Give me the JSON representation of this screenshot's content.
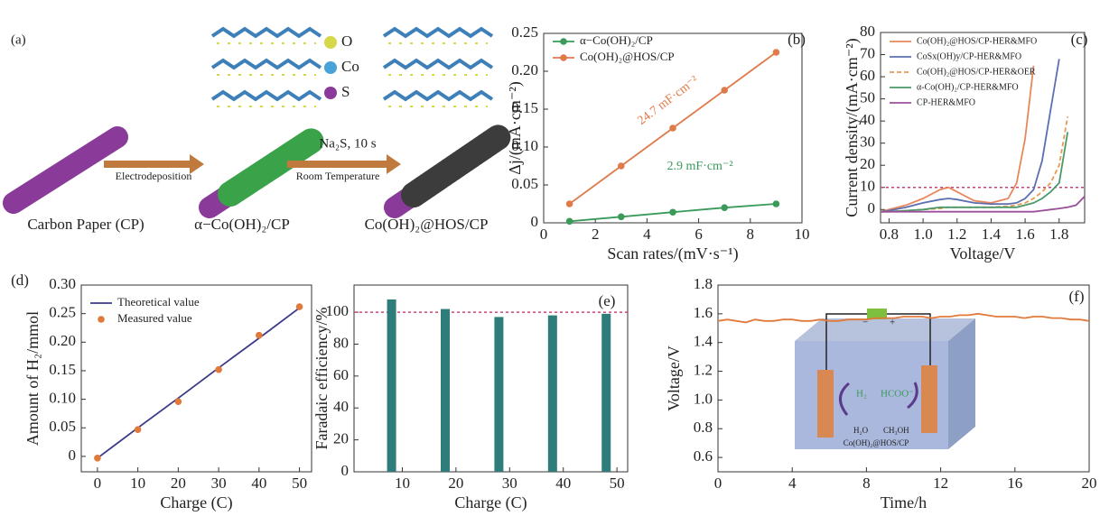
{
  "schematic": {
    "panel_label": "(a)",
    "atoms": [
      "O",
      "Co",
      "S"
    ],
    "atom_colors": [
      "#d6d84a",
      "#4aa3d8",
      "#8a3b9a"
    ],
    "step1": "Electrodeposition",
    "step2_top": "Na₂S, 10 s",
    "step2_bottom": "Room Temperature",
    "stage1": "Carbon Paper (CP)",
    "stage2": "α−Co(OH)₂/CP",
    "stage3": "Co(OH)₂@HOS/CP"
  },
  "inset": {
    "h2": "H₂",
    "hcoo": "HCOO⁻",
    "h2o": "H₂O",
    "ch3oh": "CH₃OH",
    "electrode": "Co(OH)₂@HOS/CP",
    "minus": "−",
    "plus": "+"
  },
  "chart_data": [
    {
      "type": "line",
      "panel_label": "(b)",
      "x_label": "Scan rates/(mV·s⁻¹)",
      "y_label": "Δj/(mA·cm⁻²)",
      "x": [
        1,
        3,
        5,
        7,
        9
      ],
      "xlim": [
        0,
        10
      ],
      "xticks": [
        0,
        2,
        4,
        6,
        8,
        10
      ],
      "ylim": [
        0,
        0.25
      ],
      "yticks": [
        0,
        0.05,
        {
          "value": 0.1,
          "label": "0.10"
        },
        0.15,
        {
          "value": 0.2,
          "label": "0.20"
        },
        0.25
      ],
      "legend": "upper left",
      "series": [
        {
          "name": "α−Co(OH)₂/CP",
          "color": "#3a9a5a",
          "mode": "lines+markers",
          "values": [
            0.002,
            0.008,
            0.014,
            0.02,
            0.025
          ]
        },
        {
          "name": "Co(OH)₂@HOS/CP",
          "color": "#e07a4a",
          "mode": "lines+markers",
          "values": [
            0.025,
            0.075,
            0.125,
            0.175,
            0.225
          ]
        }
      ],
      "annotations": [
        {
          "text": "24.7 mF·cm⁻²",
          "color": "#e07a4a"
        },
        {
          "text": "2.9 mF·cm⁻²",
          "color": "#3a9a5a"
        }
      ]
    },
    {
      "type": "line",
      "panel_label": "(c)",
      "x_label": "Voltage/V",
      "y_label": "Current density/(mA·cm⁻²)",
      "x": [
        0.75,
        0.8,
        0.9,
        1.0,
        1.1,
        1.15,
        1.2,
        1.3,
        1.4,
        1.5,
        1.55,
        1.6,
        1.65,
        1.7,
        1.75,
        1.8,
        1.85,
        1.9,
        1.95
      ],
      "xlim": [
        0.75,
        1.95
      ],
      "xticks": [
        0.8,
        {
          "value": 1,
          "label": "1.0"
        },
        1.2,
        1.4,
        1.6,
        1.8
      ],
      "ylim": [
        -6,
        80
      ],
      "yticks": [
        0,
        10,
        20,
        30,
        40,
        50,
        60,
        70,
        80
      ],
      "legend": "upper left",
      "reference_line": {
        "value": 10,
        "color": "#c8407a"
      },
      "series": [
        {
          "name": "Co(OH)₂@HOS/CP-HER&MFO",
          "color": "#e8885a",
          "mode": "lines",
          "values": [
            -1,
            0,
            2,
            5,
            9,
            10,
            8,
            4,
            3,
            5,
            12,
            32,
            65,
            null,
            null,
            null,
            null,
            null,
            null
          ]
        },
        {
          "name": "CoSx(OH)y/CP-HER&MFO",
          "color": "#5b6fb0",
          "mode": "lines",
          "values": [
            -1,
            -0.5,
            1,
            3,
            4.5,
            5,
            4.5,
            3,
            2.5,
            2.5,
            3,
            5,
            9,
            22,
            45,
            68,
            null,
            null,
            null
          ]
        },
        {
          "name": "Co(OH)₂@HOS/CP-HER&OER",
          "color": "#e89a50",
          "mode": "dashed",
          "values": [
            -1,
            -1,
            -0.5,
            0,
            0.5,
            1,
            1,
            1,
            1,
            1.5,
            2,
            3,
            5,
            8,
            12,
            20,
            42,
            null,
            null
          ]
        },
        {
          "name": "α-Co(OH)₂/CP-HER&MFO",
          "color": "#4a9a6a",
          "mode": "lines",
          "values": [
            -1,
            -1,
            -0.5,
            0,
            1,
            1,
            1,
            1,
            1,
            1,
            1,
            2,
            3,
            5,
            8,
            12,
            35,
            null,
            null
          ]
        },
        {
          "name": "CP-HER&MFO",
          "color": "#9b4f9b",
          "mode": "lines",
          "values": [
            -1,
            -1,
            -1,
            -1,
            -1,
            -1,
            -1,
            -1,
            -1,
            -1,
            -1,
            -1,
            -1,
            -0.5,
            0,
            0.5,
            1,
            2,
            6
          ]
        }
      ]
    },
    {
      "type": "line",
      "panel_label": "(d)",
      "x_label": "Charge (C)",
      "y_label": "Amount of H₂/mmol",
      "x": [
        0,
        10,
        20,
        30,
        40,
        50
      ],
      "xlim": [
        -4,
        53
      ],
      "xticks": [
        0,
        10,
        20,
        30,
        40,
        50
      ],
      "ylim": [
        -0.027,
        0.3
      ],
      "yticks": [
        0,
        0.05,
        {
          "value": 0.1,
          "label": "0.10"
        },
        0.15,
        {
          "value": 0.2,
          "label": "0.20"
        },
        0.25,
        {
          "value": 0.3,
          "label": "0.30"
        }
      ],
      "legend": "upper left",
      "series": [
        {
          "name": "Theoretical value",
          "color": "#3a3a8a",
          "mode": "lines",
          "values": [
            -0.003,
            0.05,
            0.102,
            0.155,
            0.207,
            0.26
          ]
        },
        {
          "name": "Measured value",
          "color": "#e07a3a",
          "mode": "markers",
          "values": [
            -0.003,
            0.047,
            0.096,
            0.152,
            0.212,
            0.262
          ]
        }
      ]
    },
    {
      "type": "bar",
      "panel_label": "(e)",
      "x_label": "Charge (C)",
      "y_label": "Faradaic efficiency/%",
      "x": [
        8,
        18,
        28,
        38,
        48
      ],
      "xlim": [
        1,
        52
      ],
      "xticks": [
        10,
        20,
        30,
        40,
        50
      ],
      "ylim": [
        0,
        117
      ],
      "yticks": [
        0,
        20,
        40,
        60,
        80,
        100
      ],
      "color": "#2e7d7a",
      "reference_line": {
        "value": 100,
        "color": "#d0407a"
      },
      "values": [
        108,
        102,
        97,
        98,
        99
      ]
    },
    {
      "type": "line",
      "panel_label": "(f)",
      "x_label": "Time/h",
      "y_label": "Voltage/V",
      "x": [
        0,
        0.5,
        1,
        1.5,
        2,
        2.5,
        3,
        3.5,
        4,
        4.5,
        5,
        5.5,
        6,
        6.5,
        7,
        7.5,
        8,
        8.5,
        9,
        9.5,
        10,
        10.5,
        11,
        11.5,
        12,
        12.5,
        13,
        13.5,
        14,
        14.5,
        15,
        15.5,
        16,
        16.5,
        17,
        17.5,
        18,
        18.5,
        19,
        19.5,
        20
      ],
      "xlim": [
        0,
        20
      ],
      "xticks": [
        0,
        4,
        8,
        12,
        16,
        20
      ],
      "ylim": [
        0.5,
        1.8
      ],
      "yticks": [
        0.6,
        0.8,
        {
          "value": 1,
          "label": "1.0"
        },
        1.2,
        1.4,
        1.6,
        1.8
      ],
      "series": [
        {
          "color": "#e07a3a",
          "mode": "lines",
          "values": [
            1.55,
            1.56,
            1.55,
            1.54,
            1.56,
            1.55,
            1.55,
            1.56,
            1.56,
            1.55,
            1.55,
            1.56,
            1.55,
            1.55,
            1.56,
            1.56,
            1.56,
            1.57,
            1.57,
            1.57,
            1.58,
            1.58,
            1.58,
            1.57,
            1.58,
            1.58,
            1.59,
            1.59,
            1.6,
            1.59,
            1.58,
            1.58,
            1.58,
            1.57,
            1.58,
            1.58,
            1.57,
            1.57,
            1.56,
            1.56,
            1.55
          ]
        }
      ]
    }
  ]
}
